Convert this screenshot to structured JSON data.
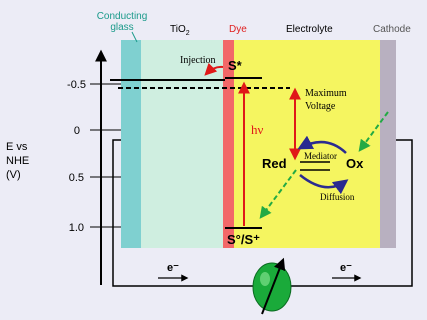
{
  "layers": {
    "glass": {
      "label_line1": "Conducting",
      "label_line2": "glass",
      "color": "#7fd0d0",
      "label_color": "#1a9a8a"
    },
    "tio2": {
      "label": "TiO",
      "sub": "2",
      "color": "#cfeee0"
    },
    "dye": {
      "label": "Dye",
      "color": "#f26868",
      "label_color": "#e02020"
    },
    "electrolyte": {
      "label": "Electrolyte",
      "color": "#f5f560"
    },
    "cathode": {
      "label": "Cathode",
      "color": "#b8b0c0",
      "label_color": "#555555"
    }
  },
  "axis": {
    "label_line1": "E vs",
    "label_line2": "NHE",
    "label_line3": "(V)",
    "ticks": [
      "-0.5",
      "0",
      "0.5",
      "1.0"
    ]
  },
  "annotations": {
    "excited": "S*",
    "ground": "S°/S⁺",
    "injection": "Injection",
    "hv": "hν",
    "maximum_line1": "Maximum",
    "maximum_line2": "Voltage",
    "red": "Red",
    "mediator": "Mediator",
    "ox": "Ox",
    "diffusion": "Diffusion",
    "electron_left": "e⁻",
    "electron_right": "e⁻"
  },
  "icons": {
    "load": "resistor-load-icon"
  }
}
